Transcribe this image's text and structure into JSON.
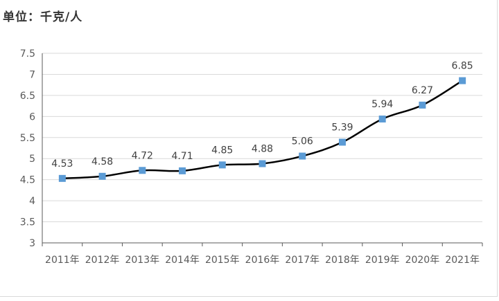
{
  "chart": {
    "unit_title": "单位：千克/人"
  },
  "chart_data": {
    "type": "line",
    "title": "",
    "xlabel": "",
    "ylabel": "",
    "unit_label": "单位：千克/人",
    "categories": [
      "2011年",
      "2012年",
      "2013年",
      "2014年",
      "2015年",
      "2016年",
      "2017年",
      "2018年",
      "2019年",
      "2020年",
      "2021年"
    ],
    "series": [
      {
        "values": [
          4.53,
          4.58,
          4.72,
          4.71,
          4.85,
          4.88,
          5.06,
          5.39,
          5.94,
          6.27,
          6.85
        ]
      }
    ],
    "data_labels": [
      "4.53",
      "4.58",
      "4.72",
      "4.71",
      "4.85",
      "4.88",
      "5.06",
      "5.39",
      "5.94",
      "6.27",
      "6.85"
    ],
    "y_ticks": [
      "3",
      "3.5",
      "4",
      "4.5",
      "5",
      "5.5",
      "6",
      "6.5",
      "7",
      "7.5"
    ],
    "ylim": [
      3,
      7.5
    ],
    "grid": true,
    "legend": "none",
    "colors": {
      "line": "#000000",
      "marker": "#5b9bd5",
      "grid": "#d9d9d9",
      "axis": "#595959"
    }
  }
}
